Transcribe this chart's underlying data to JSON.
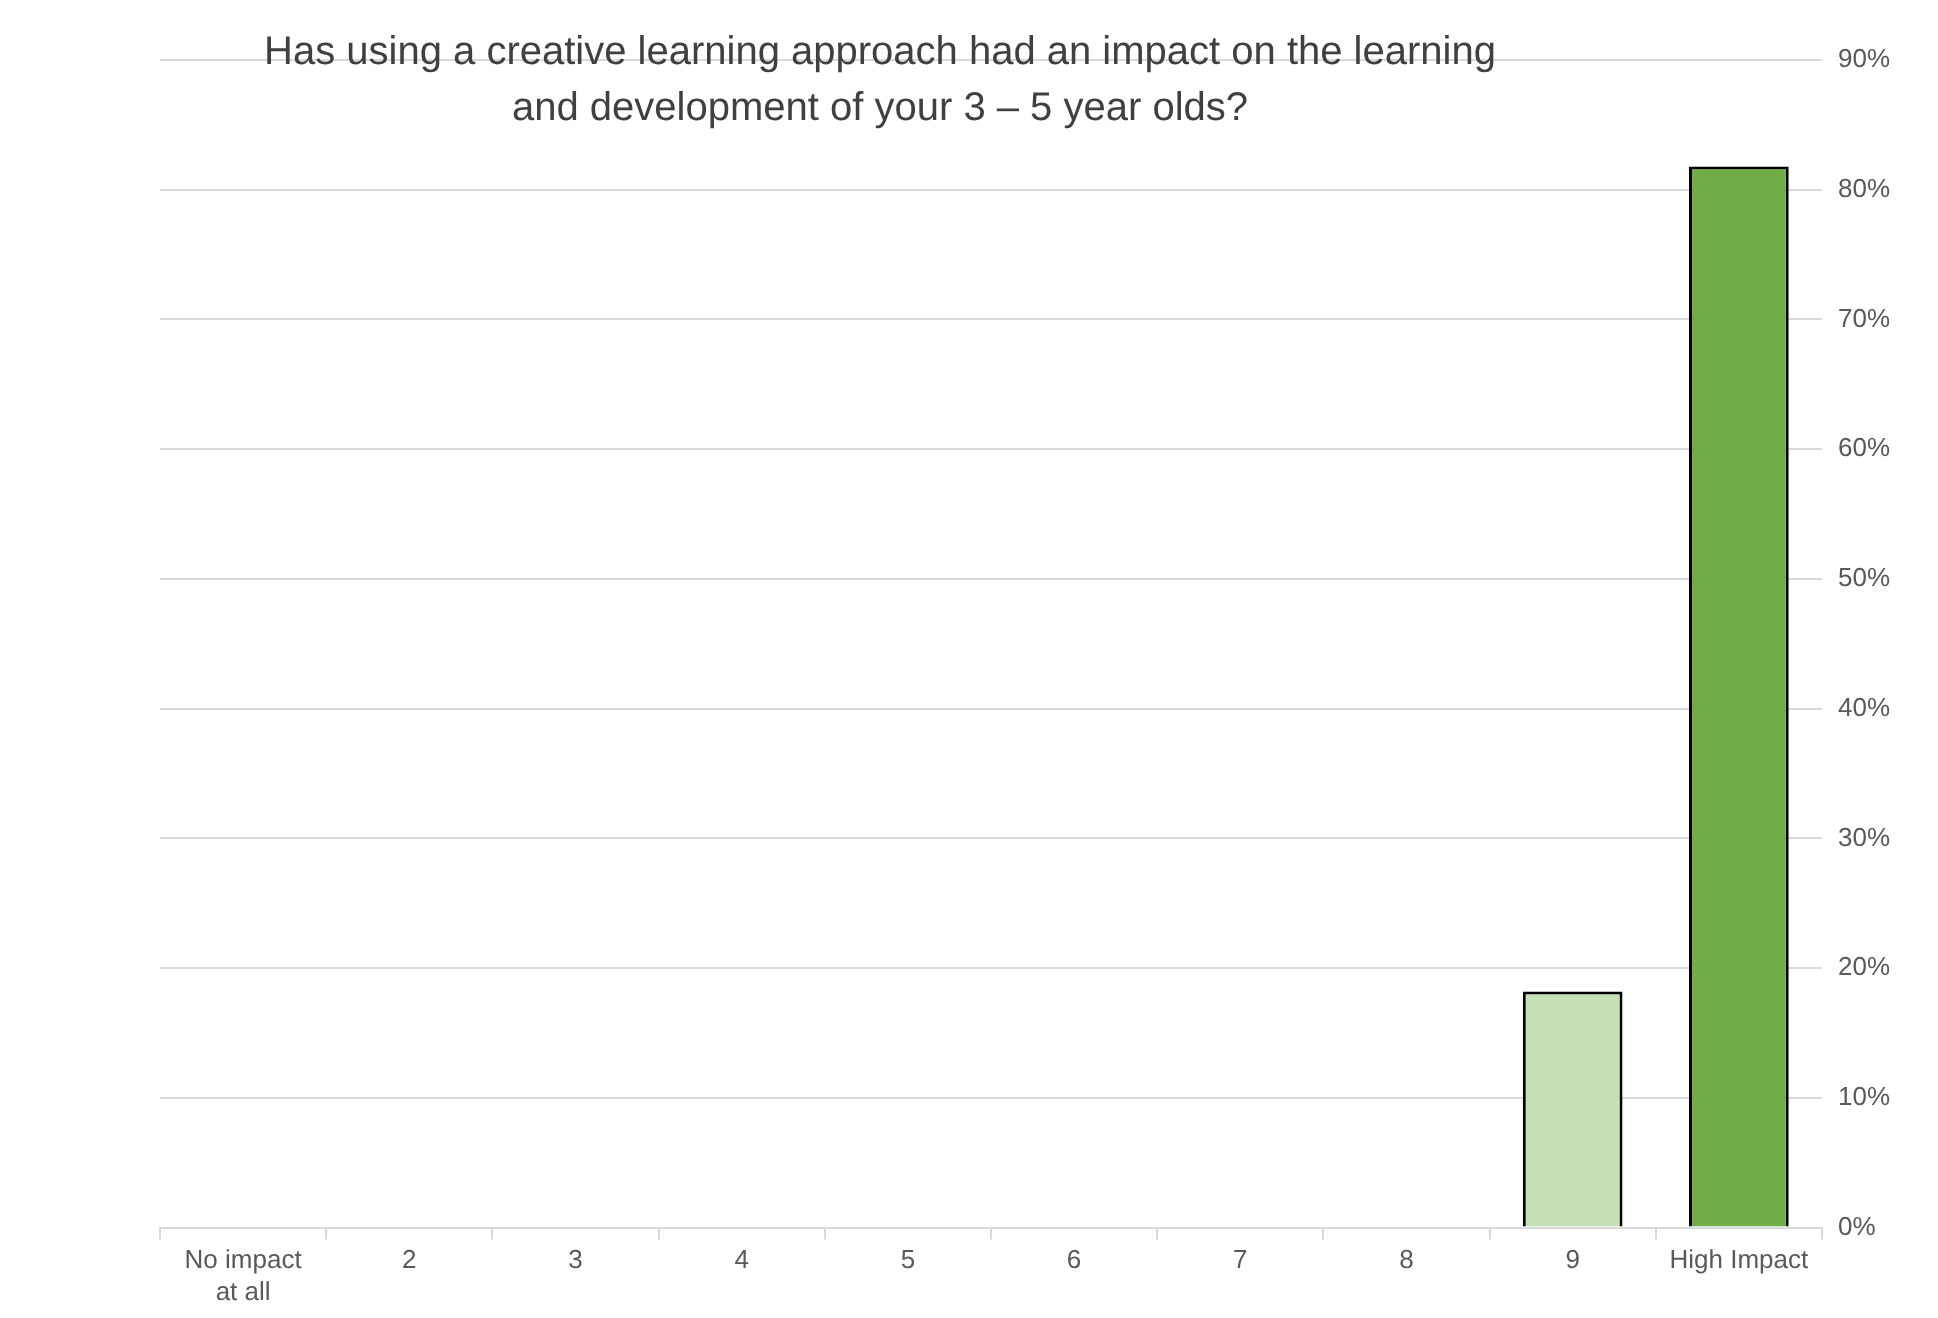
{
  "chart_data": {
    "type": "bar",
    "title": "Has using a creative learning approach had an impact on the learning and development of your 3 – 5 year olds?",
    "categories": [
      "No impact at all",
      "2",
      "3",
      "4",
      "5",
      "6",
      "7",
      "8",
      "9",
      "High Impact"
    ],
    "values": [
      0,
      0,
      0,
      0,
      0,
      0,
      0,
      0,
      18.2,
      81.8
    ],
    "colors": [
      "#c5e0b4",
      "#c5e0b4",
      "#c5e0b4",
      "#c5e0b4",
      "#c5e0b4",
      "#c5e0b4",
      "#c5e0b4",
      "#c5e0b4",
      "#c5e0b4",
      "#70ad47"
    ],
    "ylim": [
      0,
      90
    ],
    "yticks": [
      {
        "value": 0,
        "label": "0%"
      },
      {
        "value": 10,
        "label": "10%"
      },
      {
        "value": 20,
        "label": "20%"
      },
      {
        "value": 30,
        "label": "30%"
      },
      {
        "value": 40,
        "label": "40%"
      },
      {
        "value": 50,
        "label": "50%"
      },
      {
        "value": 60,
        "label": "60%"
      },
      {
        "value": 70,
        "label": "70%"
      },
      {
        "value": 80,
        "label": "80%"
      },
      {
        "value": 90,
        "label": "90%"
      }
    ],
    "grid": "y",
    "legend": false
  }
}
